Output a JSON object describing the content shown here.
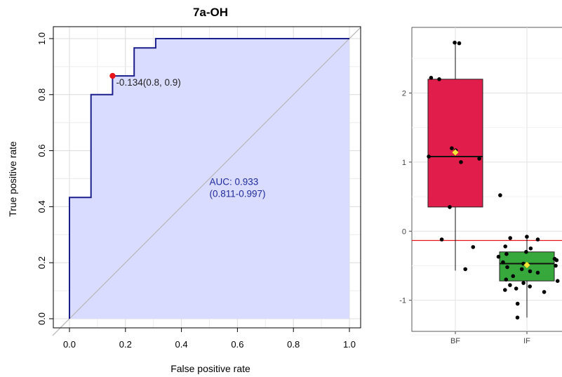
{
  "chart_data": [
    {
      "type": "line",
      "title": "7a-OH",
      "xlabel": "False positive rate",
      "ylabel": "True positive rate",
      "xlim": [
        0,
        1
      ],
      "ylim": [
        0,
        1
      ],
      "x_ticks": [
        "0.0",
        "0.2",
        "0.4",
        "0.6",
        "0.8",
        "1.0"
      ],
      "y_ticks": [
        "0.0",
        "0.2",
        "0.4",
        "0.6",
        "0.8",
        "1.0"
      ],
      "grid": true,
      "roc_curve": {
        "x": [
          0,
          0,
          0.077,
          0.077,
          0.154,
          0.154,
          0.231,
          0.231,
          0.308,
          0.308,
          1.0
        ],
        "y": [
          0,
          0.433,
          0.433,
          0.8,
          0.8,
          0.867,
          0.867,
          0.967,
          0.967,
          1.0,
          1.0
        ],
        "line_color": "#1a1f8c",
        "fill_color": "#dadcff"
      },
      "diagonal": {
        "x": [
          0,
          1
        ],
        "y": [
          0,
          1
        ],
        "color": "#b8b8b8"
      },
      "threshold_point": {
        "x": 0.154,
        "y": 0.867,
        "label": "-0.134(0.8, 0.9)",
        "color": "#e8141b"
      },
      "auc_label": "AUC: 0.933",
      "auc_ci": "(0.811-0.997)"
    },
    {
      "type": "box",
      "categories": [
        "BF",
        "IF"
      ],
      "y_ticks": [
        "-1",
        "0",
        "1",
        "2"
      ],
      "ylim": [
        -1.45,
        2.95
      ],
      "threshold_line": {
        "y": -0.134,
        "color": "#e8141b"
      },
      "boxes": [
        {
          "name": "BF",
          "color": "#e11e4b",
          "q1": 0.35,
          "median": 1.08,
          "q3": 2.2,
          "whisker_low": -0.57,
          "whisker_high": 2.72,
          "mean": 1.14,
          "points": [
            2.73,
            2.72,
            2.22,
            2.2,
            1.2,
            1.17,
            1.08,
            1.05,
            1.0,
            0.35,
            -0.12,
            -0.23,
            -0.55
          ]
        },
        {
          "name": "IF",
          "color": "#37a83c",
          "q1": -0.72,
          "median": -0.47,
          "q3": -0.3,
          "whisker_low": -1.25,
          "whisker_high": -0.08,
          "mean": -0.49,
          "points": [
            0.52,
            -0.08,
            -0.1,
            -0.12,
            -0.22,
            -0.25,
            -0.3,
            -0.33,
            -0.37,
            -0.4,
            -0.42,
            -0.45,
            -0.47,
            -0.5,
            -0.52,
            -0.55,
            -0.58,
            -0.6,
            -0.65,
            -0.7,
            -0.72,
            -0.75,
            -0.78,
            -0.8,
            -0.83,
            -0.85,
            -0.88,
            -1.05,
            -1.25
          ]
        }
      ],
      "mean_marker_color": "#f7e53a"
    }
  ]
}
